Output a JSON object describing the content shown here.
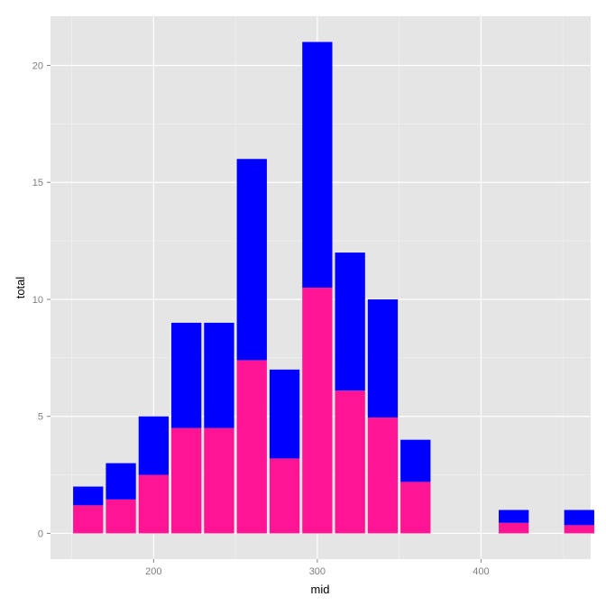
{
  "chart_data": {
    "type": "bar",
    "stacked": true,
    "title": "",
    "xlabel": "mid",
    "ylabel": "total",
    "xlim": [
      137,
      467
    ],
    "ylim": [
      -1.1,
      22.1
    ],
    "bin_width": 20,
    "grid": true,
    "legend": "none",
    "x_ticks": [
      200,
      300,
      400
    ],
    "y_ticks": [
      0,
      5,
      10,
      15,
      20
    ],
    "x": [
      160,
      180,
      200,
      220,
      240,
      260,
      280,
      300,
      320,
      340,
      360,
      380,
      420,
      460
    ],
    "series": [
      {
        "color": "#ff1493",
        "values": [
          1.2,
          1.45,
          2.5,
          4.5,
          4.5,
          7.4,
          3.2,
          10.5,
          6.1,
          4.95,
          2.2,
          0,
          0.45,
          0.35
        ]
      },
      {
        "color": "#0000ff",
        "values": [
          0.8,
          1.55,
          2.5,
          4.5,
          4.5,
          8.6,
          3.8,
          10.5,
          5.9,
          5.05,
          1.8,
          0,
          0.55,
          0.65
        ]
      }
    ]
  },
  "colors": {
    "panel_background": "#e5e5e5",
    "grid_major": "#ffffff",
    "grid_minor": "#f2f2f2"
  }
}
